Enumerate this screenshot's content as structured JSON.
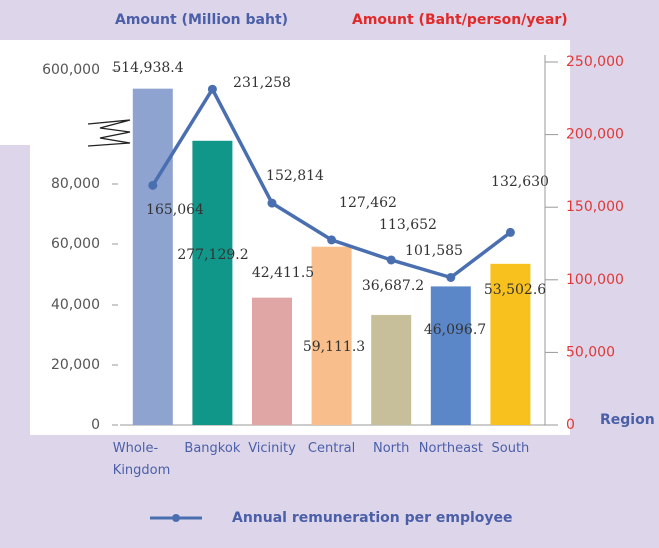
{
  "chart_data": {
    "type": "bar-line",
    "y_label": "Amount (Million baht)",
    "y2_label": "Amount (Baht/person/year)",
    "x_label": "Region",
    "categories": [
      "Whole-Kingdom",
      "Bangkok",
      "Vicinity",
      "Central",
      "North",
      "Northeast",
      "South"
    ],
    "series": [
      {
        "name": "Amount",
        "type": "bar",
        "colors": [
          "#8fa3d0",
          "#11968a",
          "#e0a6a6",
          "#f8bf8c",
          "#c6bf9a",
          "#5b87c9",
          "#f8c11e"
        ],
        "values": [
          514938.4,
          277129.2,
          42411.5,
          59111.3,
          36687.2,
          46096.7,
          53502.6
        ],
        "value_labels": [
          "514,938.4",
          "277,129.2",
          "42,411.5",
          "59,111.3",
          "36,687.2",
          "46,096.7",
          "53,502.6"
        ]
      },
      {
        "name": "Annual remuneration per employee",
        "type": "line",
        "axis": "y2",
        "color": "#4a6fb0",
        "values": [
          165064,
          231258,
          152814,
          127462,
          113652,
          101585,
          132630
        ],
        "value_labels": [
          "165,064",
          "231,258",
          "152,814",
          "127,462",
          "113,652",
          "101,585",
          "132,630"
        ]
      }
    ],
    "ylim": [
      0,
      600000
    ],
    "yticks": [
      0,
      {
        "value": 20000,
        "label": "20,000"
      },
      {
        "value": 40000,
        "label": "40,000"
      },
      {
        "value": 60000,
        "label": "60,000"
      },
      {
        "value": 80000,
        "label": "80,000"
      },
      {
        "value": 600000,
        "label": "600,000"
      }
    ],
    "y2lim": [
      0,
      250000
    ],
    "y2ticks": [
      0,
      {
        "value": 50000,
        "label": "50,000"
      },
      {
        "value": 100000,
        "label": "100,000"
      },
      {
        "value": 150000,
        "label": "150,000"
      },
      {
        "value": 200000,
        "label": "200,000"
      },
      {
        "value": 250000,
        "label": "250,000"
      }
    ]
  }
}
